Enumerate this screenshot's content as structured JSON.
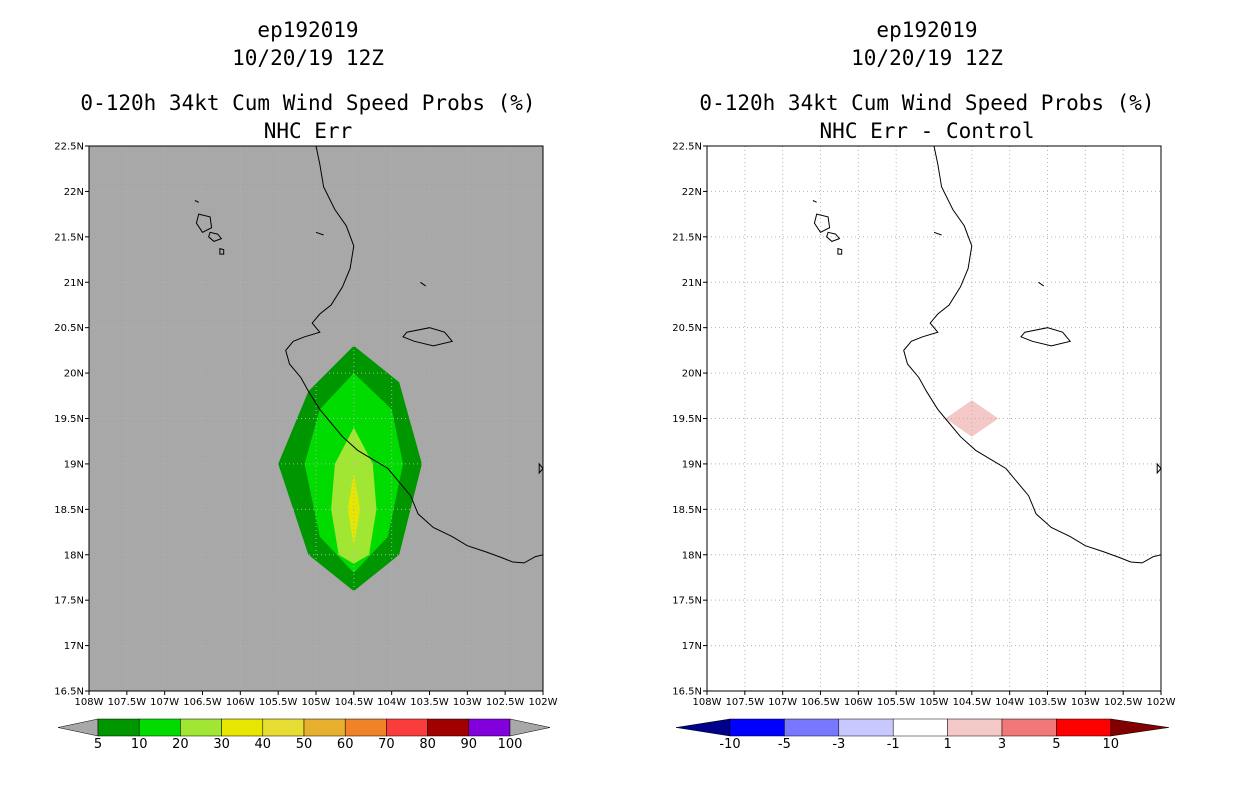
{
  "left": {
    "storm": "ep192019",
    "datetime": "10/20/19 12Z",
    "title": "0-120h 34kt Cum Wind Speed Probs (%)",
    "subtitle": "NHC Err",
    "colorbar_labels": [
      "5",
      "10",
      "20",
      "30",
      "40",
      "50",
      "60",
      "70",
      "80",
      "90",
      "100"
    ],
    "colors": {
      "background": "#a8a8a8",
      "c5": "#009600",
      "c10": "#00dc00",
      "c20": "#a0e632",
      "c30": "#e6e600",
      "c40": "#e6dc32",
      "c50": "#e6af2d",
      "c60": "#f08228",
      "c70": "#fa3c3c",
      "c80": "#a00000",
      "c90": "#8200dc"
    }
  },
  "right": {
    "storm": "ep192019",
    "datetime": "10/20/19 12Z",
    "title": "0-120h 34kt Cum Wind Speed Probs (%)",
    "subtitle": "NHC Err - Control",
    "colorbar_labels": [
      "-10",
      "-5",
      "-3",
      "-1",
      "1",
      "3",
      "5",
      "10"
    ],
    "colors": {
      "lt_neg10": "#00008c",
      "neg10_neg5": "#0000ff",
      "neg5_neg3": "#7878ff",
      "neg3_neg1": "#c8c8ff",
      "neg1_1": "#ffffff",
      "p1_3": "#f5c8c8",
      "p3_5": "#f07878",
      "p5_10": "#ff0000",
      "gt10": "#820000"
    }
  },
  "axes": {
    "lat_labels": [
      "22.5N",
      "22N",
      "21.5N",
      "21N",
      "20.5N",
      "20N",
      "19.5N",
      "19N",
      "18.5N",
      "18N",
      "17.5N",
      "17N",
      "16.5N"
    ],
    "lon_labels": [
      "108W",
      "107.5W",
      "107W",
      "106.5W",
      "106W",
      "105.5W",
      "105W",
      "104.5W",
      "104W",
      "103.5W",
      "103W",
      "102.5W",
      "102W"
    ]
  },
  "chart_data": [
    {
      "type": "heatmap",
      "title": "0-120h 34kt Cum Wind Speed Probs (%)",
      "subtitle": "NHC Err",
      "xlim": [
        -108,
        -102
      ],
      "ylim": [
        16.5,
        22.5
      ],
      "levels": [
        5,
        10,
        20,
        30,
        40,
        50,
        60,
        70,
        80,
        90,
        100
      ],
      "contours": [
        {
          "level": 5,
          "polygon": [
            [
              -104.5,
              20.3
            ],
            [
              -103.9,
              19.9
            ],
            [
              -103.6,
              19.0
            ],
            [
              -103.9,
              18.0
            ],
            [
              -104.5,
              17.6
            ],
            [
              -105.1,
              18.0
            ],
            [
              -105.5,
              19.0
            ],
            [
              -105.1,
              19.8
            ]
          ]
        },
        {
          "level": 10,
          "polygon": [
            [
              -104.5,
              20.0
            ],
            [
              -104.0,
              19.6
            ],
            [
              -103.85,
              19.0
            ],
            [
              -104.05,
              18.2
            ],
            [
              -104.5,
              17.8
            ],
            [
              -104.95,
              18.2
            ],
            [
              -105.15,
              19.0
            ],
            [
              -104.95,
              19.6
            ]
          ]
        },
        {
          "level": 20,
          "polygon": [
            [
              -104.5,
              19.4
            ],
            [
              -104.25,
              19.0
            ],
            [
              -104.2,
              18.5
            ],
            [
              -104.3,
              18.0
            ],
            [
              -104.5,
              17.9
            ],
            [
              -104.7,
              18.0
            ],
            [
              -104.8,
              18.5
            ],
            [
              -104.75,
              19.0
            ]
          ]
        },
        {
          "level": 30,
          "polygon": [
            [
              -104.5,
              18.9
            ],
            [
              -104.42,
              18.5
            ],
            [
              -104.5,
              18.1
            ],
            [
              -104.58,
              18.5
            ]
          ]
        }
      ]
    },
    {
      "type": "heatmap",
      "title": "0-120h 34kt Cum Wind Speed Probs (%)",
      "subtitle": "NHC Err - Control",
      "xlim": [
        -108,
        -102
      ],
      "ylim": [
        16.5,
        22.5
      ],
      "levels": [
        -10,
        -5,
        -3,
        -1,
        1,
        3,
        5,
        10
      ],
      "contours": [
        {
          "level": 1,
          "polygon": [
            [
              -104.5,
              19.7
            ],
            [
              -104.15,
              19.5
            ],
            [
              -104.5,
              19.3
            ],
            [
              -104.85,
              19.5
            ]
          ]
        }
      ]
    }
  ]
}
